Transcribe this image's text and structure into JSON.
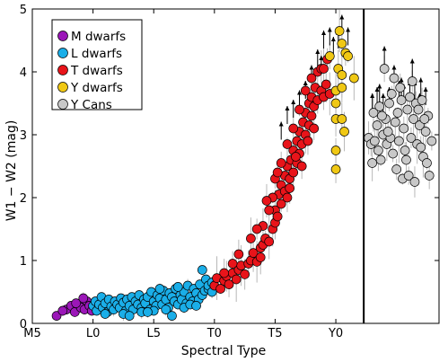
{
  "chart_data": {
    "type": "scatter",
    "xlabel": "Spectral Type",
    "ylabel": "W1 − W2 (mag)",
    "x_tick_labels": [
      "M5",
      "L0",
      "L5",
      "T0",
      "T5",
      "Y0"
    ],
    "x_tick_values": [
      5,
      10,
      15,
      20,
      25,
      30
    ],
    "y_tick_labels": [
      "0",
      "1",
      "2",
      "3",
      "4",
      "5"
    ],
    "xlim": [
      5,
      38.5
    ],
    "ylim": [
      0,
      5
    ],
    "grid": false,
    "legend_position": "top-left",
    "divider_x": 32.3,
    "series": [
      {
        "name": "M dwarfs",
        "color": "#9b17b8",
        "points": [
          [
            7.0,
            0.12
          ],
          [
            7.8,
            0.22
          ],
          [
            8.2,
            0.28
          ],
          [
            8.5,
            0.18
          ],
          [
            8.8,
            0.3
          ],
          [
            9.0,
            0.25
          ],
          [
            9.3,
            0.22
          ],
          [
            9.5,
            0.35
          ],
          [
            9.7,
            0.28
          ],
          [
            9.9,
            0.2
          ],
          [
            8.6,
            0.32
          ],
          [
            9.2,
            0.4
          ],
          [
            7.5,
            0.2
          ]
        ]
      },
      {
        "name": "L dwarfs",
        "color": "#1aaee8",
        "points": [
          [
            10.0,
            0.28
          ],
          [
            10.2,
            0.35
          ],
          [
            10.3,
            0.2
          ],
          [
            10.5,
            0.3
          ],
          [
            10.7,
            0.42
          ],
          [
            10.8,
            0.25
          ],
          [
            11.0,
            0.32
          ],
          [
            11.2,
            0.18
          ],
          [
            11.3,
            0.38
          ],
          [
            11.5,
            0.27
          ],
          [
            11.7,
            0.22
          ],
          [
            11.8,
            0.35
          ],
          [
            12.0,
            0.3
          ],
          [
            12.2,
            0.25
          ],
          [
            12.3,
            0.4
          ],
          [
            12.5,
            0.33
          ],
          [
            12.7,
            0.2
          ],
          [
            12.8,
            0.38
          ],
          [
            13.0,
            0.28
          ],
          [
            13.2,
            0.42
          ],
          [
            13.3,
            0.22
          ],
          [
            13.5,
            0.35
          ],
          [
            13.7,
            0.3
          ],
          [
            13.8,
            0.45
          ],
          [
            14.0,
            0.25
          ],
          [
            14.2,
            0.38
          ],
          [
            14.3,
            0.32
          ],
          [
            14.5,
            0.42
          ],
          [
            14.7,
            0.22
          ],
          [
            14.8,
            0.5
          ],
          [
            15.0,
            0.35
          ],
          [
            15.2,
            0.28
          ],
          [
            15.3,
            0.45
          ],
          [
            15.5,
            0.4
          ],
          [
            15.7,
            0.3
          ],
          [
            15.8,
            0.52
          ],
          [
            16.0,
            0.38
          ],
          [
            16.2,
            0.25
          ],
          [
            16.3,
            0.48
          ],
          [
            16.5,
            0.42
          ],
          [
            16.7,
            0.35
          ],
          [
            16.8,
            0.55
          ],
          [
            17.0,
            0.3
          ],
          [
            17.2,
            0.45
          ],
          [
            17.3,
            0.38
          ],
          [
            17.5,
            0.5
          ],
          [
            17.7,
            0.32
          ],
          [
            17.8,
            0.6
          ],
          [
            18.0,
            0.42
          ],
          [
            18.2,
            0.35
          ],
          [
            18.3,
            0.55
          ],
          [
            18.5,
            0.48
          ],
          [
            18.7,
            0.38
          ],
          [
            18.8,
            0.62
          ],
          [
            19.0,
            0.45
          ],
          [
            19.2,
            0.52
          ],
          [
            19.3,
            0.7
          ],
          [
            19.5,
            0.55
          ],
          [
            19.0,
            0.85
          ],
          [
            19.5,
            0.6
          ],
          [
            19.8,
            0.65
          ],
          [
            19.8,
            0.5
          ],
          [
            12.5,
            0.15
          ],
          [
            14.0,
            0.18
          ],
          [
            16.0,
            0.22
          ],
          [
            17.5,
            0.25
          ],
          [
            13.0,
            0.12
          ],
          [
            15.0,
            0.2
          ],
          [
            18.0,
            0.3
          ],
          [
            11.0,
            0.15
          ],
          [
            16.5,
            0.12
          ],
          [
            18.5,
            0.28
          ],
          [
            17.0,
            0.58
          ],
          [
            15.5,
            0.55
          ],
          [
            14.5,
            0.18
          ]
        ]
      },
      {
        "name": "T dwarfs",
        "color": "#e8141a",
        "points": [
          [
            20.0,
            0.6
          ],
          [
            20.2,
            0.72
          ],
          [
            20.5,
            0.55
          ],
          [
            20.8,
            0.68
          ],
          [
            21.0,
            0.75
          ],
          [
            21.2,
            0.62
          ],
          [
            21.5,
            0.8
          ],
          [
            21.8,
            0.7
          ],
          [
            22.0,
            0.85
          ],
          [
            22.2,
            0.92
          ],
          [
            22.5,
            0.78
          ],
          [
            22.8,
            0.95
          ],
          [
            23.0,
            1.0
          ],
          [
            23.2,
            1.12
          ],
          [
            23.5,
            0.98
          ],
          [
            23.8,
            1.2
          ],
          [
            24.0,
            1.25
          ],
          [
            24.2,
            1.35
          ],
          [
            24.5,
            1.3
          ],
          [
            24.8,
            1.5
          ],
          [
            25.0,
            1.6
          ],
          [
            25.0,
            1.8
          ],
          [
            25.2,
            1.7
          ],
          [
            25.3,
            2.05
          ],
          [
            25.5,
            1.9
          ],
          [
            25.5,
            2.2
          ],
          [
            25.8,
            2.1
          ],
          [
            25.8,
            2.35
          ],
          [
            26.0,
            2.0
          ],
          [
            26.0,
            2.5
          ],
          [
            26.2,
            2.3
          ],
          [
            26.3,
            2.6
          ],
          [
            26.5,
            2.4
          ],
          [
            26.5,
            2.75
          ],
          [
            26.8,
            2.55
          ],
          [
            26.8,
            2.9
          ],
          [
            27.0,
            2.7
          ],
          [
            27.0,
            3.05
          ],
          [
            27.2,
            2.85
          ],
          [
            27.3,
            3.2
          ],
          [
            27.5,
            3.0
          ],
          [
            27.5,
            3.35
          ],
          [
            27.8,
            3.15
          ],
          [
            27.8,
            3.5
          ],
          [
            28.0,
            3.3
          ],
          [
            28.0,
            3.6
          ],
          [
            28.2,
            3.45
          ],
          [
            28.3,
            3.75
          ],
          [
            28.5,
            3.55
          ],
          [
            28.5,
            4.0
          ],
          [
            28.8,
            3.7
          ],
          [
            28.8,
            4.05
          ],
          [
            29.0,
            3.6
          ],
          [
            29.2,
            3.8
          ],
          [
            29.3,
            4.2
          ],
          [
            29.5,
            3.65
          ],
          [
            24.0,
            1.55
          ],
          [
            24.5,
            1.8
          ],
          [
            25.0,
            2.3
          ],
          [
            25.5,
            2.55
          ],
          [
            26.0,
            2.85
          ],
          [
            26.5,
            3.1
          ],
          [
            27.0,
            3.4
          ],
          [
            27.5,
            3.7
          ],
          [
            28.0,
            3.9
          ],
          [
            23.5,
            1.5
          ],
          [
            24.8,
            2.0
          ],
          [
            26.2,
            2.15
          ],
          [
            27.2,
            2.5
          ],
          [
            28.2,
            3.1
          ],
          [
            22.0,
            1.1
          ],
          [
            23.0,
            1.35
          ],
          [
            20.8,
            0.8
          ],
          [
            21.5,
            0.95
          ],
          [
            25.2,
            2.4
          ],
          [
            26.7,
            2.65
          ],
          [
            24.3,
            1.95
          ],
          [
            27.7,
            2.9
          ],
          [
            29.0,
            4.05
          ],
          [
            23.8,
            1.05
          ]
        ]
      },
      {
        "name": "Y dwarfs",
        "color": "#f0c814",
        "points": [
          [
            29.5,
            4.25
          ],
          [
            30.0,
            3.7
          ],
          [
            30.0,
            3.5
          ],
          [
            30.0,
            2.75
          ],
          [
            30.0,
            2.45
          ],
          [
            30.0,
            3.25
          ],
          [
            30.2,
            4.05
          ],
          [
            30.3,
            4.65
          ],
          [
            30.5,
            4.45
          ],
          [
            30.5,
            3.95
          ],
          [
            30.5,
            3.25
          ],
          [
            30.7,
            3.05
          ],
          [
            30.8,
            4.3
          ],
          [
            31.0,
            4.25
          ],
          [
            31.5,
            3.9
          ],
          [
            30.5,
            3.75
          ]
        ]
      },
      {
        "name": "Y Cans",
        "color": "#c8c8c8",
        "points": [
          [
            32.7,
            2.95
          ],
          [
            32.9,
            2.85
          ],
          [
            33.0,
            2.55
          ],
          [
            33.1,
            3.35
          ],
          [
            33.2,
            2.9
          ],
          [
            33.4,
            3.15
          ],
          [
            33.5,
            2.75
          ],
          [
            33.6,
            3.45
          ],
          [
            33.7,
            2.6
          ],
          [
            33.9,
            3.0
          ],
          [
            34.0,
            4.05
          ],
          [
            34.1,
            3.25
          ],
          [
            34.2,
            2.85
          ],
          [
            34.4,
            3.5
          ],
          [
            34.5,
            2.95
          ],
          [
            34.6,
            3.65
          ],
          [
            34.7,
            2.7
          ],
          [
            34.9,
            3.2
          ],
          [
            35.0,
            2.45
          ],
          [
            35.1,
            3.35
          ],
          [
            35.2,
            2.9
          ],
          [
            35.4,
            3.55
          ],
          [
            35.5,
            2.3
          ],
          [
            35.6,
            3.1
          ],
          [
            35.7,
            2.75
          ],
          [
            35.9,
            3.4
          ],
          [
            36.0,
            2.35
          ],
          [
            36.1,
            3.6
          ],
          [
            36.2,
            2.95
          ],
          [
            36.4,
            3.25
          ],
          [
            36.5,
            2.25
          ],
          [
            36.6,
            3.5
          ],
          [
            36.7,
            2.85
          ],
          [
            36.9,
            3.15
          ],
          [
            37.0,
            2.8
          ],
          [
            37.1,
            3.55
          ],
          [
            37.2,
            2.65
          ],
          [
            37.4,
            3.05
          ],
          [
            37.5,
            2.55
          ],
          [
            37.6,
            3.3
          ],
          [
            37.7,
            2.35
          ],
          [
            37.9,
            2.9
          ],
          [
            34.8,
            3.9
          ],
          [
            35.3,
            3.75
          ],
          [
            36.3,
            3.85
          ],
          [
            33.8,
            3.3
          ],
          [
            36.8,
            3.4
          ],
          [
            35.8,
            2.6
          ],
          [
            34.3,
            3.05
          ],
          [
            37.3,
            3.25
          ]
        ]
      }
    ],
    "lower_limit_points": [
      [
        26.0,
        3.1
      ],
      [
        26.5,
        3.2
      ],
      [
        27.0,
        3.35
      ],
      [
        27.5,
        3.5
      ],
      [
        28.0,
        3.75
      ],
      [
        28.5,
        4.0
      ],
      [
        29.0,
        4.3
      ],
      [
        29.5,
        4.35
      ],
      [
        30.2,
        4.3
      ],
      [
        30.5,
        4.55
      ],
      [
        31.0,
        4.35
      ],
      [
        29.8,
        4.2
      ],
      [
        28.8,
        3.9
      ],
      [
        25.5,
        2.85
      ],
      [
        33.0,
        3.3
      ],
      [
        33.4,
        3.4
      ],
      [
        33.9,
        3.3
      ],
      [
        34.4,
        3.4
      ],
      [
        34.8,
        3.75
      ],
      [
        35.2,
        3.5
      ],
      [
        35.6,
        3.45
      ],
      [
        36.1,
        3.5
      ],
      [
        36.5,
        3.5
      ],
      [
        37.0,
        3.55
      ],
      [
        37.4,
        3.4
      ],
      [
        34.0,
        4.05
      ],
      [
        36.3,
        3.85
      ],
      [
        33.6,
        3.45
      ],
      [
        35.4,
        3.55
      ],
      [
        36.9,
        3.3
      ]
    ]
  }
}
